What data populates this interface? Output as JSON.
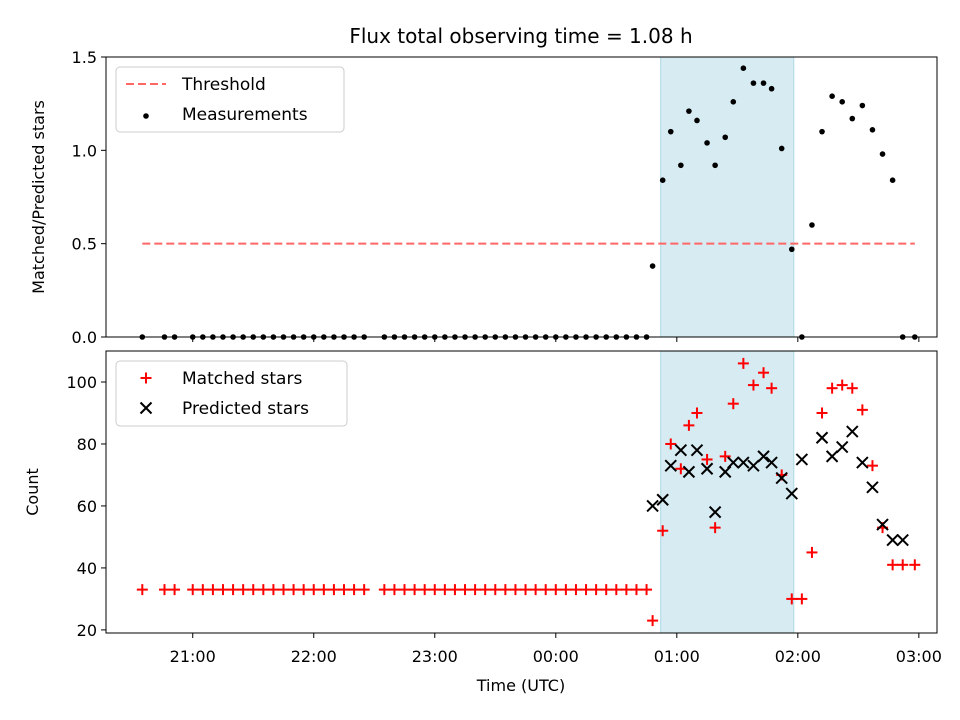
{
  "title": "Flux total observing time = 1.08 h",
  "colors": {
    "threshold": "#ff6666",
    "measurement": "#000000",
    "matched": "#ff0000",
    "predicted": "#000000",
    "highlight": "#add8e6"
  },
  "chart_data": [
    {
      "type": "scatter",
      "ylabel": "Matched/Predicted stars",
      "ylim": [
        0,
        1.5
      ],
      "yticks": [
        0,
        0.5,
        1.0,
        1.5
      ],
      "ytick_labels": [
        "0.0",
        "0.5",
        "1.0",
        "1.5"
      ],
      "legend": [
        "Threshold",
        "Measurements"
      ],
      "legend_position": "upper-left",
      "threshold": {
        "y": 0.5,
        "x_start": "20:35",
        "x_end": "02:58"
      },
      "highlight_span": {
        "start": "00:52",
        "end": "01:58"
      },
      "series": [
        {
          "name": "Measurements",
          "style": "dot",
          "x": [
            "20:35",
            "20:46",
            "20:51",
            "21:00",
            "21:05",
            "21:10",
            "21:15",
            "21:20",
            "21:25",
            "21:30",
            "21:35",
            "21:40",
            "21:45",
            "21:50",
            "21:55",
            "22:00",
            "22:05",
            "22:10",
            "22:15",
            "22:20",
            "22:25",
            "22:35",
            "22:40",
            "22:45",
            "22:50",
            "22:55",
            "23:00",
            "23:05",
            "23:10",
            "23:15",
            "23:20",
            "23:25",
            "23:30",
            "23:35",
            "23:40",
            "23:45",
            "23:50",
            "23:55",
            "00:00",
            "00:05",
            "00:10",
            "00:15",
            "00:20",
            "00:25",
            "00:30",
            "00:35",
            "00:40",
            "00:45",
            "00:48",
            "00:53",
            "00:57",
            "01:02",
            "01:06",
            "01:10",
            "01:15",
            "01:19",
            "01:24",
            "01:28",
            "01:33",
            "01:38",
            "01:43",
            "01:47",
            "01:52",
            "01:57",
            "02:02",
            "02:07",
            "02:12",
            "02:17",
            "02:22",
            "02:27",
            "02:32",
            "02:37",
            "02:42",
            "02:47",
            "02:52",
            "02:58"
          ],
          "y": [
            0,
            0,
            0,
            0,
            0,
            0,
            0,
            0,
            0,
            0,
            0,
            0,
            0,
            0,
            0,
            0,
            0,
            0,
            0,
            0,
            0,
            0,
            0,
            0,
            0,
            0,
            0,
            0,
            0,
            0,
            0,
            0,
            0,
            0,
            0,
            0,
            0,
            0,
            0,
            0,
            0,
            0,
            0,
            0,
            0,
            0,
            0,
            0,
            0.38,
            0.84,
            1.1,
            0.92,
            1.21,
            1.16,
            1.04,
            0.92,
            1.07,
            1.26,
            1.44,
            1.36,
            1.36,
            1.33,
            1.01,
            0.47,
            0,
            0.6,
            1.1,
            1.29,
            1.26,
            1.17,
            1.24,
            1.11,
            0.98,
            0.84,
            0,
            0
          ]
        }
      ]
    },
    {
      "type": "scatter",
      "ylabel": "Count",
      "xlabel": "Time (UTC)",
      "xlim": [
        "20:17",
        "03:09"
      ],
      "ylim": [
        19,
        110
      ],
      "yticks": [
        20,
        40,
        60,
        80,
        100
      ],
      "xticks": [
        "21:00",
        "22:00",
        "23:00",
        "00:00",
        "01:00",
        "02:00",
        "03:00"
      ],
      "legend": [
        "Matched stars",
        "Predicted stars"
      ],
      "legend_position": "upper-left",
      "highlight_span": {
        "start": "00:52",
        "end": "01:58"
      },
      "series": [
        {
          "name": "Matched stars",
          "style": "plus",
          "x": [
            "20:35",
            "20:46",
            "20:51",
            "21:00",
            "21:05",
            "21:10",
            "21:15",
            "21:20",
            "21:25",
            "21:30",
            "21:35",
            "21:40",
            "21:45",
            "21:50",
            "21:55",
            "22:00",
            "22:05",
            "22:10",
            "22:15",
            "22:20",
            "22:25",
            "22:35",
            "22:40",
            "22:45",
            "22:50",
            "22:55",
            "23:00",
            "23:05",
            "23:10",
            "23:15",
            "23:20",
            "23:25",
            "23:30",
            "23:35",
            "23:40",
            "23:45",
            "23:50",
            "23:55",
            "00:00",
            "00:05",
            "00:10",
            "00:15",
            "00:20",
            "00:25",
            "00:30",
            "00:35",
            "00:40",
            "00:45",
            "00:48",
            "00:53",
            "00:57",
            "01:02",
            "01:06",
            "01:10",
            "01:15",
            "01:19",
            "01:24",
            "01:28",
            "01:33",
            "01:38",
            "01:43",
            "01:47",
            "01:52",
            "01:57",
            "02:02",
            "02:07",
            "02:12",
            "02:17",
            "02:22",
            "02:27",
            "02:32",
            "02:37",
            "02:42",
            "02:47",
            "02:52",
            "02:58"
          ],
          "y": [
            33,
            33,
            33,
            33,
            33,
            33,
            33,
            33,
            33,
            33,
            33,
            33,
            33,
            33,
            33,
            33,
            33,
            33,
            33,
            33,
            33,
            33,
            33,
            33,
            33,
            33,
            33,
            33,
            33,
            33,
            33,
            33,
            33,
            33,
            33,
            33,
            33,
            33,
            33,
            33,
            33,
            33,
            33,
            33,
            33,
            33,
            33,
            33,
            23,
            52,
            80,
            72,
            86,
            90,
            75,
            53,
            76,
            93,
            106,
            99,
            103,
            98,
            70,
            30,
            30,
            45,
            90,
            98,
            99,
            98,
            91,
            73,
            53,
            41,
            41,
            41
          ]
        },
        {
          "name": "Predicted stars",
          "style": "x",
          "x": [
            "00:48",
            "00:53",
            "00:57",
            "01:02",
            "01:06",
            "01:10",
            "01:15",
            "01:19",
            "01:24",
            "01:28",
            "01:33",
            "01:38",
            "01:43",
            "01:47",
            "01:52",
            "01:57",
            "02:02",
            "02:12",
            "02:17",
            "02:22",
            "02:27",
            "02:32",
            "02:37",
            "02:42",
            "02:47",
            "02:52"
          ],
          "y": [
            60,
            62,
            73,
            78,
            71,
            78,
            72,
            58,
            71,
            74,
            74,
            73,
            76,
            74,
            69,
            64,
            75,
            82,
            76,
            79,
            84,
            74,
            66,
            54,
            49,
            49
          ]
        }
      ]
    }
  ]
}
